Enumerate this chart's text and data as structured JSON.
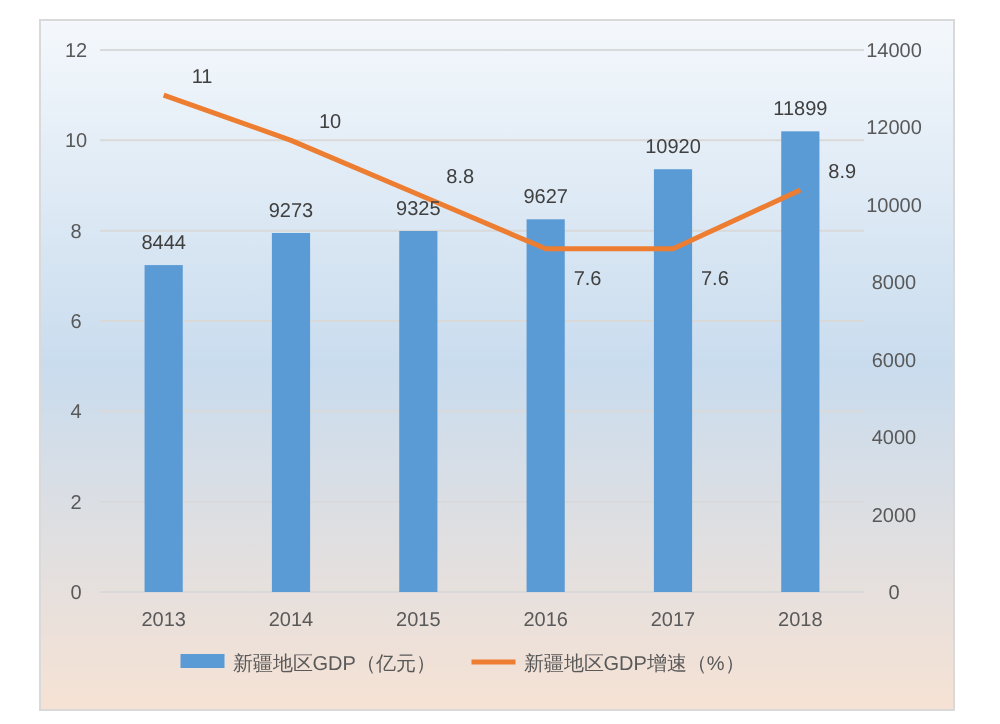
{
  "chart_data": {
    "type": "bar",
    "categories": [
      "2013",
      "2014",
      "2015",
      "2016",
      "2017",
      "2018"
    ],
    "series": [
      {
        "name": "新疆地区GDP（亿元）",
        "axis": "y2",
        "color": "#5b9bd5",
        "values": [
          8444,
          9273,
          9325,
          9627,
          10920,
          11899
        ]
      },
      {
        "name": "新疆地区GDP增速（%）",
        "type": "line",
        "color": "#ed7d31",
        "values": [
          11,
          10,
          8.8,
          7.6,
          7.6,
          8.9
        ]
      }
    ],
    "ylim": [
      0,
      12
    ],
    "yticks": [
      0,
      2,
      4,
      6,
      8,
      10,
      12
    ],
    "y2lim": [
      0,
      14000
    ],
    "y2ticks": [
      0,
      2000,
      4000,
      6000,
      8000,
      10000,
      12000,
      14000
    ],
    "data_labels": true,
    "grid": "y",
    "legend": "bottom",
    "marker": "none"
  }
}
